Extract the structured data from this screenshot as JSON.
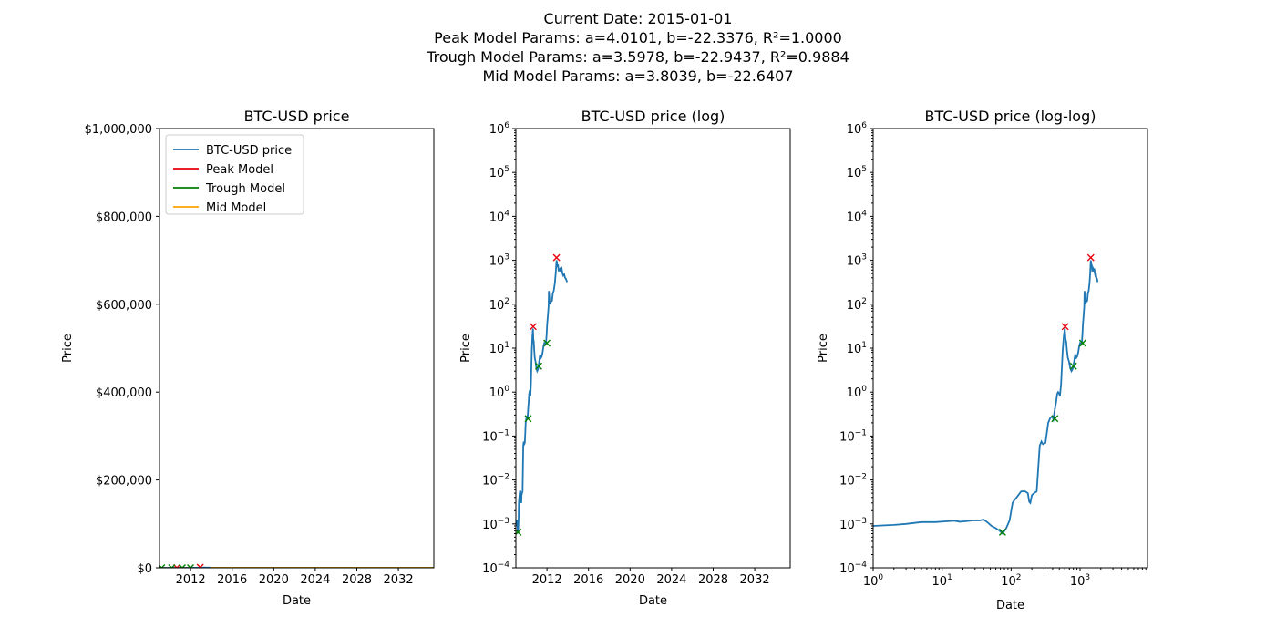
{
  "header": {
    "lines": [
      "Current Date: 2015-01-01",
      "Peak Model Params: a=4.0101, b=-22.3376, R²=1.0000",
      "Trough Model Params: a=3.5978, b=-22.9437, R²=0.9884",
      "Mid Model Params: a=3.8039, b=-22.6407"
    ]
  },
  "colors": {
    "btc": "#1f77b4",
    "peak": "#e8000b",
    "trough": "#008000",
    "mid": "#ffa500"
  },
  "models": {
    "genesis": "2009-01-03",
    "peak": {
      "a": 4.0101,
      "b": -22.3376
    },
    "trough": {
      "a": 3.5978,
      "b": -22.9437
    },
    "mid": {
      "a": 3.8039,
      "b": -22.6407
    }
  },
  "legend": [
    "BTC-USD price",
    "Peak Model",
    "Trough Model",
    "Mid Model"
  ],
  "chart_data": [
    {
      "type": "line",
      "title": "BTC-USD price",
      "xlabel": "Date",
      "ylabel": "Price",
      "yscale": "linear",
      "xlim": [
        "2009-01-03",
        "2035-06-01"
      ],
      "ylim": [
        0,
        1000000
      ],
      "xticks": [
        "2012",
        "2016",
        "2020",
        "2024",
        "2028",
        "2032"
      ],
      "yticks": [
        "$0",
        "$200,000",
        "$400,000",
        "$600,000",
        "$800,000",
        "$1,000,000"
      ],
      "legend_position": "upper-left"
    },
    {
      "type": "line",
      "title": "BTC-USD price (log)",
      "xlabel": "Date",
      "ylabel": "Price",
      "yscale": "log",
      "xlim": [
        "2009-01-03",
        "2035-06-01"
      ],
      "ylim": [
        0.0001,
        1000000
      ],
      "xticks": [
        "2012",
        "2016",
        "2020",
        "2024",
        "2028",
        "2032"
      ],
      "yticks_exp": [
        "−4",
        "−3",
        "−2",
        "−1",
        "0",
        "1",
        "2",
        "3",
        "4",
        "5",
        "6"
      ]
    },
    {
      "type": "line",
      "title": "BTC-USD price (log-log)",
      "xlabel": "Date",
      "ylabel": "Price",
      "xscale": "log",
      "yscale": "log",
      "xlim": [
        1,
        9500
      ],
      "ylim": [
        0.0001,
        1000000
      ],
      "xticks_exp": [
        "0",
        "1",
        "2",
        "3"
      ],
      "yticks_exp": [
        "−4",
        "−3",
        "−2",
        "−1",
        "0",
        "1",
        "2",
        "3",
        "4",
        "5",
        "6"
      ]
    }
  ],
  "series": {
    "btc_price": [
      [
        1,
        0.0009
      ],
      [
        2,
        0.00095
      ],
      [
        3,
        0.001
      ],
      [
        5,
        0.0011
      ],
      [
        8,
        0.0011
      ],
      [
        12,
        0.00115
      ],
      [
        15,
        0.00118
      ],
      [
        18,
        0.00112
      ],
      [
        22,
        0.00115
      ],
      [
        28,
        0.0012
      ],
      [
        35,
        0.0012
      ],
      [
        40,
        0.00125
      ],
      [
        45,
        0.0011
      ],
      [
        52,
        0.0009
      ],
      [
        60,
        0.0008
      ],
      [
        68,
        0.0007
      ],
      [
        75,
        0.0006
      ],
      [
        85,
        0.0008
      ],
      [
        95,
        0.0012
      ],
      [
        105,
        0.003
      ],
      [
        112,
        0.0035
      ],
      [
        120,
        0.004
      ],
      [
        140,
        0.0055
      ],
      [
        160,
        0.0055
      ],
      [
        175,
        0.005
      ],
      [
        183,
        0.0032
      ],
      [
        190,
        0.003
      ],
      [
        200,
        0.0045
      ],
      [
        215,
        0.005
      ],
      [
        235,
        0.0055
      ],
      [
        260,
        0.06
      ],
      [
        275,
        0.075
      ],
      [
        290,
        0.065
      ],
      [
        315,
        0.07
      ],
      [
        345,
        0.2
      ],
      [
        370,
        0.26
      ],
      [
        395,
        0.28
      ],
      [
        410,
        0.24
      ],
      [
        430,
        0.4
      ],
      [
        450,
        0.6
      ],
      [
        465,
        0.9
      ],
      [
        480,
        1.0
      ],
      [
        495,
        0.95
      ],
      [
        510,
        0.8
      ],
      [
        530,
        1.5
      ],
      [
        560,
        9
      ],
      [
        580,
        18
      ],
      [
        600,
        28
      ],
      [
        615,
        16
      ],
      [
        630,
        14
      ],
      [
        645,
        9
      ],
      [
        665,
        6
      ],
      [
        690,
        5
      ],
      [
        720,
        3.5
      ],
      [
        750,
        3
      ],
      [
        770,
        3.2
      ],
      [
        790,
        3.5
      ],
      [
        820,
        5
      ],
      [
        850,
        7
      ],
      [
        880,
        6
      ],
      [
        910,
        6.5
      ],
      [
        940,
        8
      ],
      [
        970,
        11
      ],
      [
        1000,
        13
      ],
      [
        1030,
        12
      ],
      [
        1060,
        13
      ],
      [
        1080,
        20
      ],
      [
        1100,
        35
      ],
      [
        1130,
        60
      ],
      [
        1150,
        90
      ],
      [
        1160,
        200
      ],
      [
        1175,
        150
      ],
      [
        1190,
        100
      ],
      [
        1210,
        110
      ],
      [
        1240,
        115
      ],
      [
        1270,
        120
      ],
      [
        1300,
        180
      ],
      [
        1330,
        200
      ],
      [
        1370,
        300
      ],
      [
        1400,
        500
      ],
      [
        1430,
        1000
      ],
      [
        1445,
        900
      ],
      [
        1460,
        700
      ],
      [
        1480,
        800
      ],
      [
        1500,
        600
      ],
      [
        1525,
        620
      ],
      [
        1545,
        560
      ],
      [
        1560,
        630
      ],
      [
        1580,
        600
      ],
      [
        1610,
        650
      ],
      [
        1640,
        500
      ],
      [
        1665,
        450
      ],
      [
        1700,
        480
      ],
      [
        1730,
        400
      ],
      [
        1760,
        380
      ],
      [
        1800,
        320
      ]
    ],
    "peak_markers": [
      [
        608,
        31
      ],
      [
        1430,
        1150
      ]
    ],
    "trough_markers": [
      [
        75,
        0.00065
      ],
      [
        430,
        0.25
      ],
      [
        800,
        3.9
      ],
      [
        1090,
        13
      ]
    ]
  }
}
